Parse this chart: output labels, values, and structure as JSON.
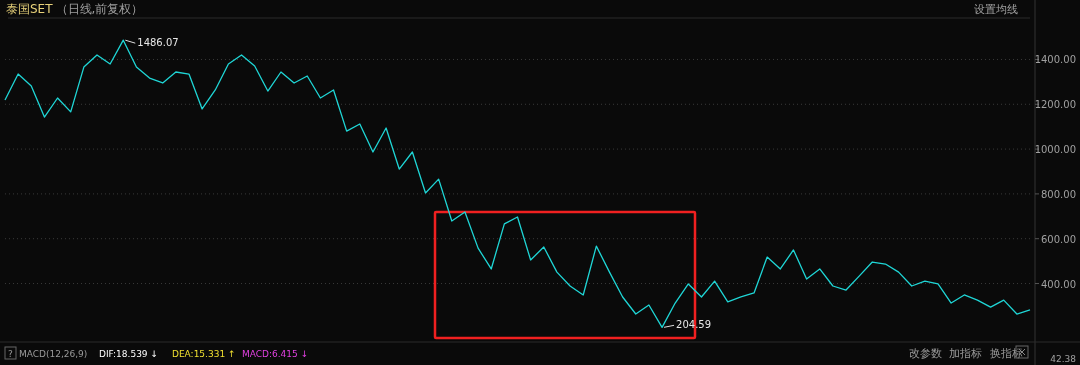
{
  "chart_data": {
    "type": "line",
    "title": "泰国SET",
    "subtitle": "（日线,前复权）",
    "categories": [
      null,
      null,
      null,
      null,
      null,
      null,
      null,
      null,
      null,
      null,
      null,
      null,
      null,
      null,
      null,
      null,
      null,
      null,
      null,
      null,
      null,
      null,
      null,
      null,
      null,
      null,
      null,
      null,
      null,
      null,
      null,
      null,
      null,
      null,
      null,
      null,
      null,
      null,
      null,
      null,
      null,
      null,
      null,
      null,
      null,
      null,
      null,
      null,
      null,
      null,
      null,
      null,
      null,
      null,
      null,
      null,
      null,
      null,
      null,
      null,
      null,
      null,
      null,
      null,
      null,
      null,
      null,
      null,
      null,
      null,
      null,
      null,
      null,
      null,
      null,
      null,
      null,
      null,
      null
    ],
    "series": [
      {
        "color": "#1fd6d6",
        "values": [
          1219,
          1335,
          1282,
          1143,
          1228,
          1166,
          1366,
          1420,
          1380,
          1486.07,
          1366,
          1317,
          1295,
          1344,
          1335,
          1179,
          1264,
          1380,
          1420,
          1371,
          1259,
          1344,
          1295,
          1326,
          1228,
          1264,
          1080,
          1112,
          987,
          1094,
          911,
          987,
          804,
          866,
          679,
          719,
          558,
          465,
          666,
          697,
          505,
          563,
          451,
          389,
          349,
          567,
          451,
          340,
          264,
          304,
          204.59,
          313,
          398,
          340,
          411,
          318,
          340,
          358,
          518,
          465,
          550,
          420,
          465,
          389,
          371,
          433,
          496,
          487,
          451,
          389,
          411,
          398,
          313,
          349,
          326,
          295,
          326,
          264,
          282
        ]
      }
    ],
    "ylim": [
      148,
      1585
    ],
    "yticks": [
      {
        "value": 400,
        "label": "400.00"
      },
      {
        "value": 600,
        "label": "600.00"
      },
      {
        "value": 800,
        "label": "800.00"
      },
      {
        "value": 1000,
        "label": "1000.00"
      },
      {
        "value": 1200,
        "label": "1200.00"
      },
      {
        "value": 1400,
        "label": "1400.00"
      }
    ],
    "grid": "y",
    "tick_labels": "y",
    "annotations": [
      "1486.07",
      "204.59",
      "设置均线",
      "?",
      "MACD(12,26,9)",
      "DIF:18.539 ↓",
      "DEA:15.331 ↑",
      "MACD:6.415 ↓",
      "改参数",
      "加指标",
      "换指标",
      "42.38"
    ]
  }
}
